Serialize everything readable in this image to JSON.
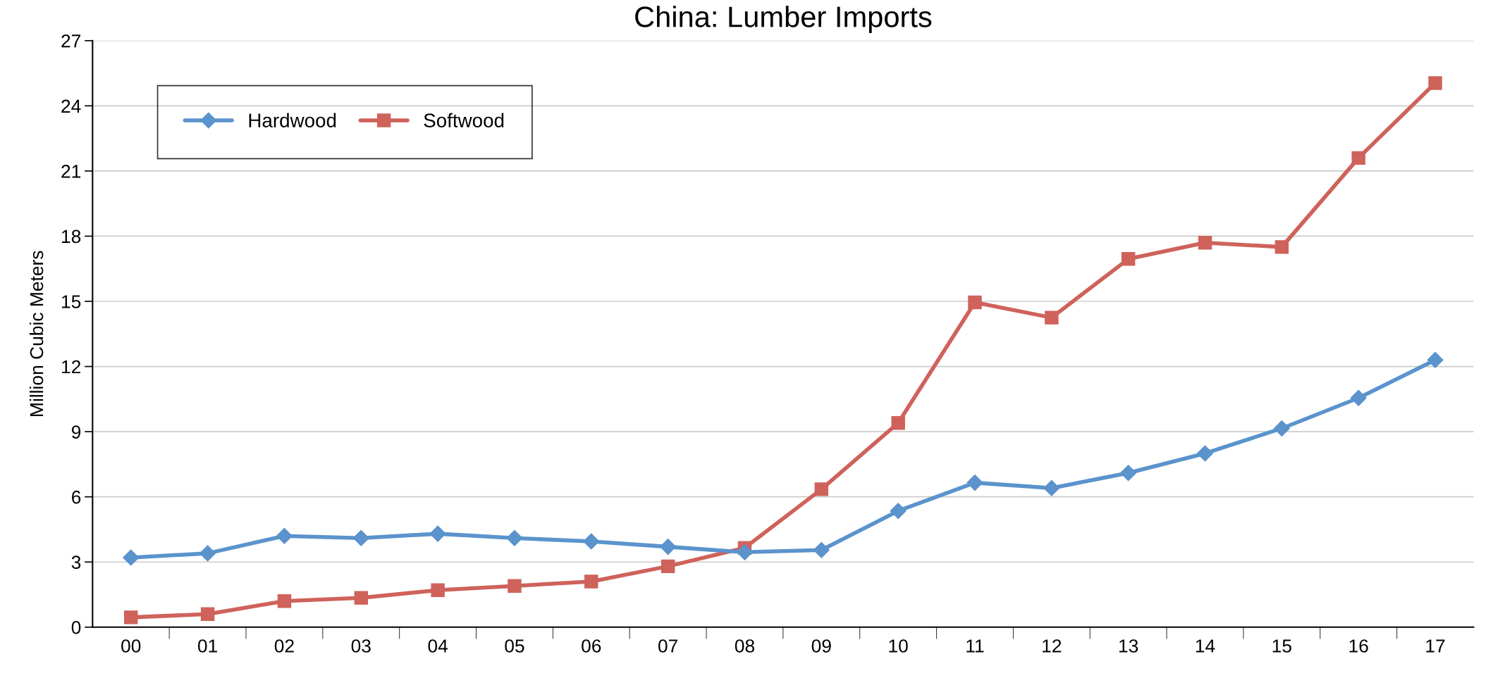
{
  "chart_data": {
    "type": "line",
    "title": "China: Lumber Imports",
    "ylabel": "Million Cubic Meters",
    "categories": [
      "00",
      "01",
      "02",
      "03",
      "04",
      "05",
      "06",
      "07",
      "08",
      "09",
      "10",
      "11",
      "12",
      "13",
      "14",
      "15",
      "16",
      "17"
    ],
    "series": [
      {
        "name": "Hardwood",
        "color": "#5b93cc",
        "marker": "diamond",
        "values": [
          3.2,
          3.4,
          4.2,
          4.1,
          4.3,
          4.1,
          3.95,
          3.7,
          3.45,
          3.55,
          5.35,
          6.65,
          6.4,
          7.1,
          8.0,
          9.15,
          10.55,
          12.3
        ]
      },
      {
        "name": "Softwood",
        "color": "#cf625b",
        "marker": "square",
        "values": [
          0.45,
          0.6,
          1.2,
          1.35,
          1.7,
          1.9,
          2.1,
          2.8,
          3.65,
          6.35,
          9.4,
          14.95,
          14.25,
          16.95,
          17.7,
          17.5,
          21.6,
          25.05
        ]
      }
    ],
    "ylim": [
      0,
      27
    ],
    "yticks": [
      0,
      3,
      6,
      9,
      12,
      15,
      18,
      21,
      24,
      27
    ],
    "grid": "y",
    "legend": "top left",
    "line_style": "solid"
  }
}
